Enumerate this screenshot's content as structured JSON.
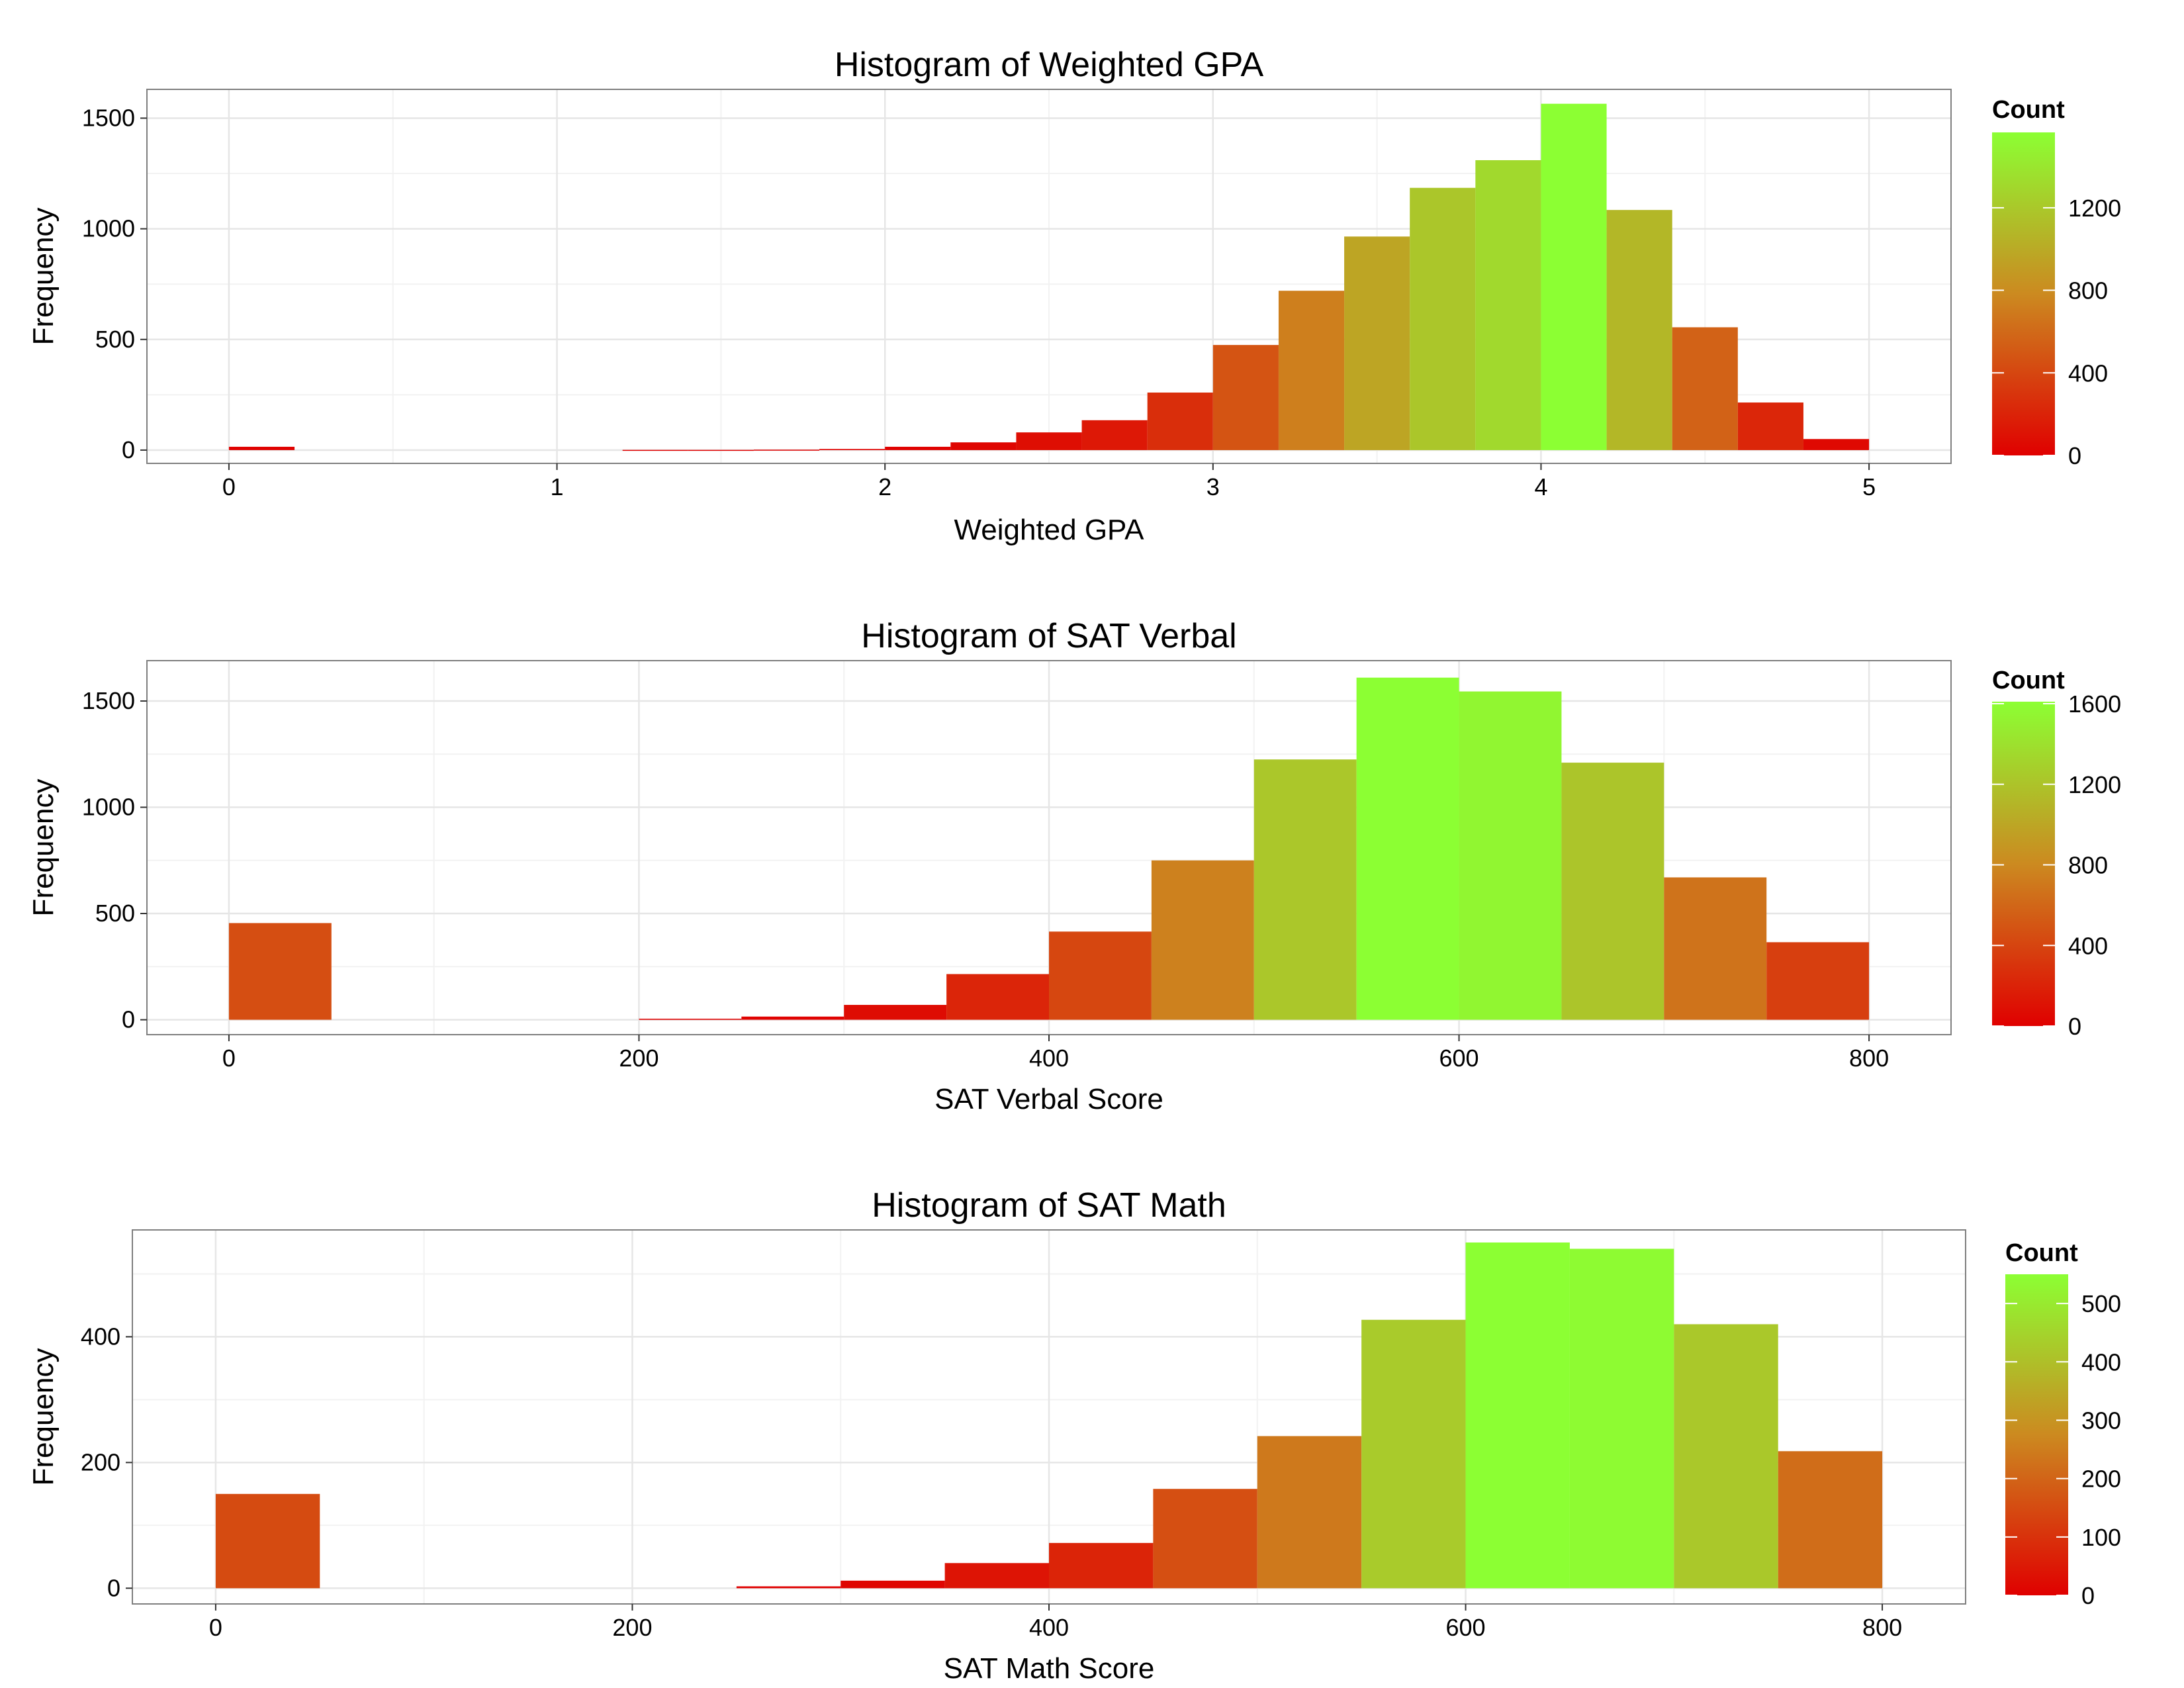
{
  "chart_data": [
    {
      "type": "bar",
      "title": "Histogram of Weighted GPA",
      "xlabel": "Weighted GPA",
      "ylabel": "Frequency",
      "bin_width": 0.2,
      "xlim": [
        -0.25,
        5.25
      ],
      "ylim": [
        -60,
        1630
      ],
      "xticks": [
        0,
        1,
        2,
        3,
        4,
        5
      ],
      "yticks": [
        0,
        500,
        1000,
        1500
      ],
      "bins": [
        {
          "x": 0.0,
          "count": 15
        },
        {
          "x": 0.2,
          "count": 0
        },
        {
          "x": 0.4,
          "count": 0
        },
        {
          "x": 0.6,
          "count": 0
        },
        {
          "x": 0.8,
          "count": 0
        },
        {
          "x": 1.0,
          "count": 0
        },
        {
          "x": 1.2,
          "count": 1
        },
        {
          "x": 1.4,
          "count": 1
        },
        {
          "x": 1.6,
          "count": 2
        },
        {
          "x": 1.8,
          "count": 5
        },
        {
          "x": 2.0,
          "count": 15
        },
        {
          "x": 2.2,
          "count": 35
        },
        {
          "x": 2.4,
          "count": 80
        },
        {
          "x": 2.6,
          "count": 135
        },
        {
          "x": 2.8,
          "count": 260
        },
        {
          "x": 3.0,
          "count": 475
        },
        {
          "x": 3.2,
          "count": 720
        },
        {
          "x": 3.4,
          "count": 965
        },
        {
          "x": 3.6,
          "count": 1185
        },
        {
          "x": 3.8,
          "count": 1310
        },
        {
          "x": 4.0,
          "count": 1565
        },
        {
          "x": 4.2,
          "count": 1085
        },
        {
          "x": 4.4,
          "count": 555
        },
        {
          "x": 4.6,
          "count": 215
        },
        {
          "x": 4.8,
          "count": 50
        }
      ],
      "legend": {
        "title": "Count",
        "max": 1565,
        "ticks": [
          0,
          400,
          800,
          1200
        ]
      },
      "colors": {
        "low": "#e00000",
        "mid": "#cc8a20",
        "high": "#8cff33"
      }
    },
    {
      "type": "bar",
      "title": "Histogram of SAT Verbal",
      "xlabel": "SAT Verbal Score",
      "ylabel": "Frequency",
      "bin_width": 50,
      "xlim": [
        -40,
        840
      ],
      "ylim": [
        -70,
        1690
      ],
      "xticks": [
        0,
        200,
        400,
        600,
        800
      ],
      "yticks": [
        0,
        500,
        1000,
        1500
      ],
      "bins": [
        {
          "x": 0,
          "count": 455
        },
        {
          "x": 50,
          "count": 0
        },
        {
          "x": 100,
          "count": 0
        },
        {
          "x": 150,
          "count": 0
        },
        {
          "x": 200,
          "count": 5
        },
        {
          "x": 250,
          "count": 15
        },
        {
          "x": 300,
          "count": 70
        },
        {
          "x": 350,
          "count": 215
        },
        {
          "x": 400,
          "count": 415
        },
        {
          "x": 450,
          "count": 750
        },
        {
          "x": 500,
          "count": 1225
        },
        {
          "x": 550,
          "count": 1610
        },
        {
          "x": 600,
          "count": 1545
        },
        {
          "x": 650,
          "count": 1210
        },
        {
          "x": 700,
          "count": 670
        },
        {
          "x": 750,
          "count": 365
        }
      ],
      "legend": {
        "title": "Count",
        "max": 1610,
        "ticks": [
          0,
          400,
          800,
          1200,
          1600
        ]
      },
      "colors": {
        "low": "#e00000",
        "mid": "#cc8a20",
        "high": "#8cff33"
      }
    },
    {
      "type": "bar",
      "title": "Histogram of SAT Math",
      "xlabel": "SAT Math Score",
      "ylabel": "Frequency",
      "bin_width": 50,
      "xlim": [
        -40,
        840
      ],
      "ylim": [
        -25,
        570
      ],
      "xticks": [
        0,
        200,
        400,
        600,
        800
      ],
      "yticks": [
        0,
        200,
        400
      ],
      "bins": [
        {
          "x": 0,
          "count": 150
        },
        {
          "x": 50,
          "count": 0
        },
        {
          "x": 100,
          "count": 0
        },
        {
          "x": 150,
          "count": 0
        },
        {
          "x": 200,
          "count": 0
        },
        {
          "x": 250,
          "count": 3
        },
        {
          "x": 300,
          "count": 12
        },
        {
          "x": 350,
          "count": 40
        },
        {
          "x": 400,
          "count": 72
        },
        {
          "x": 450,
          "count": 158
        },
        {
          "x": 500,
          "count": 242
        },
        {
          "x": 550,
          "count": 427
        },
        {
          "x": 600,
          "count": 550
        },
        {
          "x": 650,
          "count": 540
        },
        {
          "x": 700,
          "count": 420
        },
        {
          "x": 750,
          "count": 218
        }
      ],
      "legend": {
        "title": "Count",
        "max": 550,
        "ticks": [
          0,
          100,
          200,
          300,
          400,
          500
        ]
      },
      "colors": {
        "low": "#e00000",
        "mid": "#cc8a20",
        "high": "#8cff33"
      }
    }
  ]
}
